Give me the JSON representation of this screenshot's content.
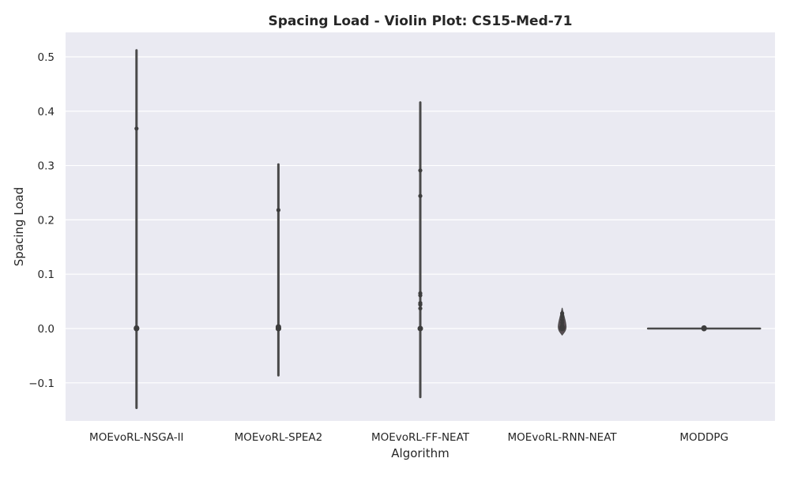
{
  "chart_data": {
    "type": "violin",
    "title": "Spacing Load - Violin Plot: CS15-Med-71",
    "xlabel": "Algorithm",
    "ylabel": "Spacing Load",
    "ylim": [
      -0.17,
      0.545
    ],
    "yticks": [
      -0.1,
      0.0,
      0.1,
      0.2,
      0.3,
      0.4,
      0.5
    ],
    "ytick_labels": [
      "−0.1",
      "0.0",
      "0.1",
      "0.2",
      "0.3",
      "0.4",
      "0.5"
    ],
    "grid": true,
    "categories": [
      "MOEvoRL-NSGA-II",
      "MOEvoRL-SPEA2",
      "MOEvoRL-FF-NEAT",
      "MOEvoRL-RNN-NEAT",
      "MODDPG"
    ],
    "series": [
      {
        "range": [
          -0.146,
          0.512
        ],
        "points": [
          0.368,
          0.001,
          0.0,
          0.0
        ]
      },
      {
        "range": [
          -0.086,
          0.302
        ],
        "points": [
          0.218,
          0.003,
          0.0,
          0.0
        ]
      },
      {
        "range": [
          -0.126,
          0.416
        ],
        "points": [
          0.291,
          0.244,
          0.065,
          0.061,
          0.047,
          0.044,
          0.037,
          0.0
        ]
      },
      {
        "range": [
          -0.012,
          0.038
        ],
        "points": [
          0.028,
          0.022,
          0.016,
          0.011,
          0.006,
          0.002,
          0.0
        ]
      },
      {
        "range": [
          0.0,
          0.001
        ],
        "points": [
          0.001,
          0.0
        ]
      }
    ],
    "colors": {
      "plot_background": "#eaeaf2",
      "grid": "#ffffff",
      "violin_line": "#4a4a4a",
      "point": "#3d3d3d"
    }
  }
}
